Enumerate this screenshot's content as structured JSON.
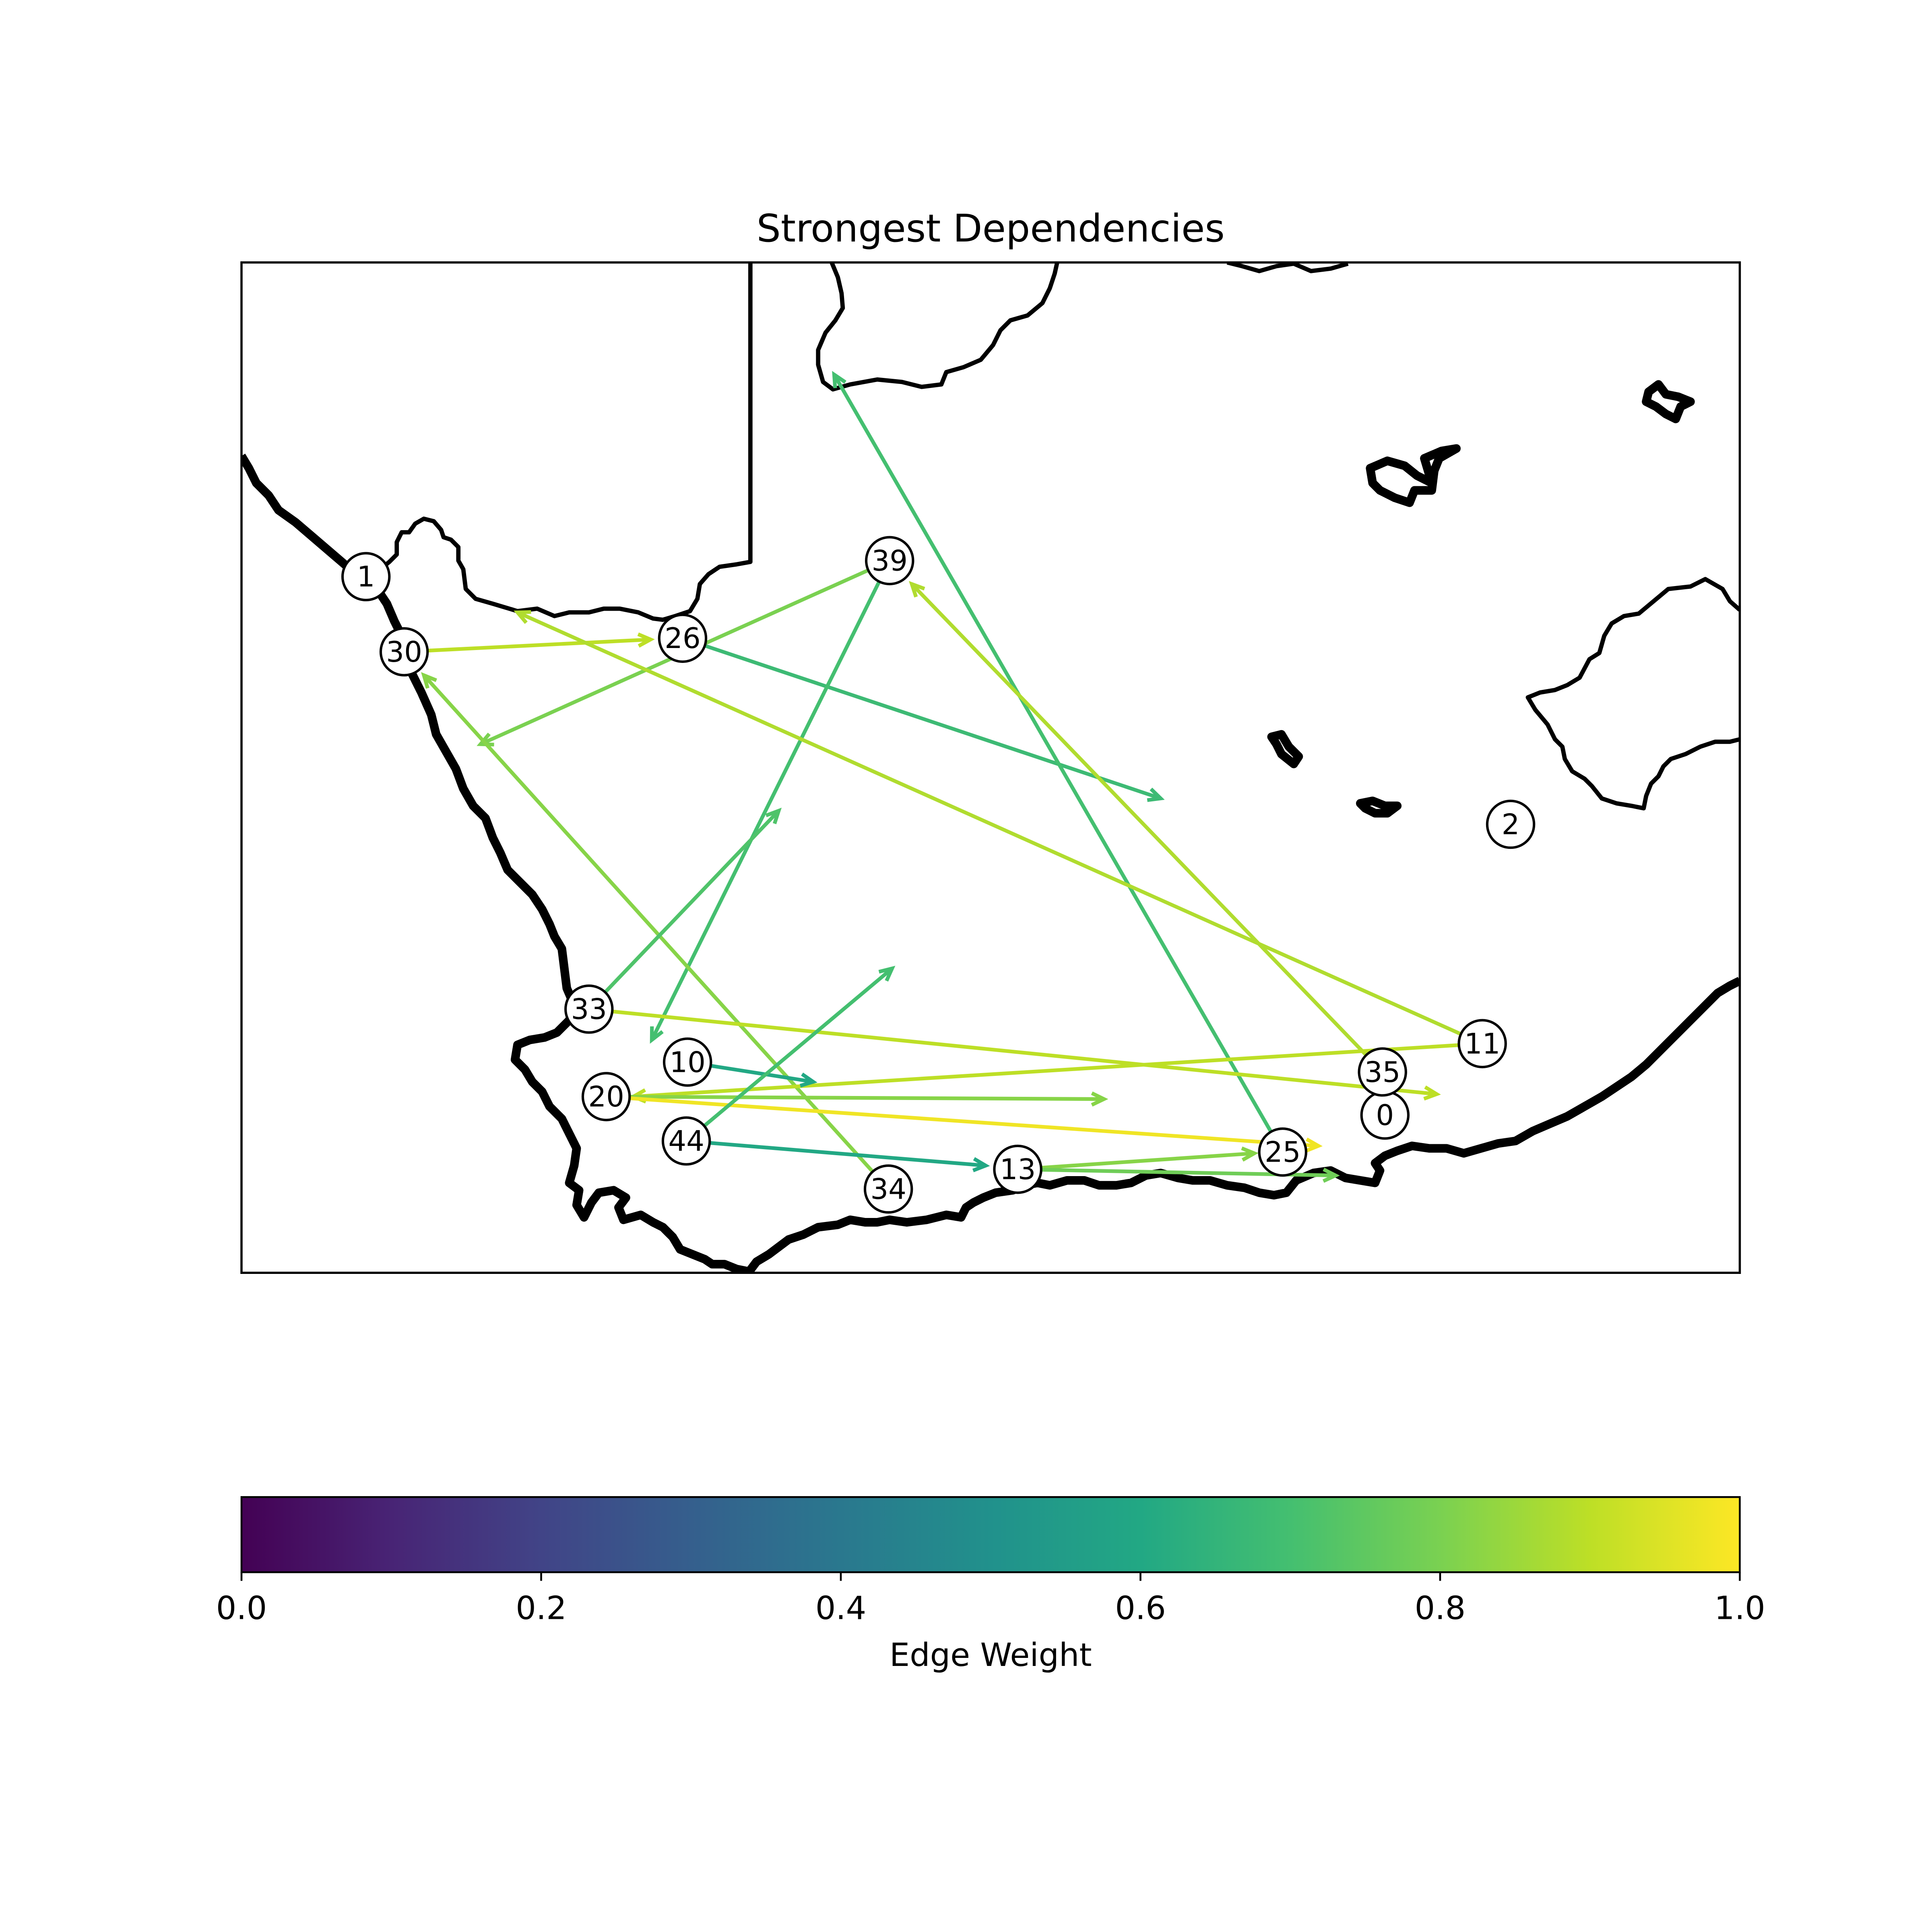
{
  "map": {
    "title": "Strongest Dependencies",
    "colormap": "viridis",
    "nodes": [
      {
        "id": "0"
      },
      {
        "id": "1"
      },
      {
        "id": "2"
      },
      {
        "id": "10"
      },
      {
        "id": "11"
      },
      {
        "id": "13"
      },
      {
        "id": "20"
      },
      {
        "id": "25"
      },
      {
        "id": "26"
      },
      {
        "id": "30"
      },
      {
        "id": "33"
      },
      {
        "id": "34"
      },
      {
        "id": "35"
      },
      {
        "id": "39"
      },
      {
        "id": "44"
      }
    ],
    "edges": [
      {
        "source": "30",
        "target": "26",
        "weight": 0.9
      },
      {
        "source": "26",
        "target": "off-map",
        "weight": 0.68
      },
      {
        "source": "39",
        "target": "off-map",
        "weight": 0.8
      },
      {
        "source": "39",
        "target": "off-map",
        "weight": 0.7
      },
      {
        "source": "25",
        "target": "off-map",
        "weight": 0.7
      },
      {
        "source": "11",
        "target": "off-map",
        "weight": 0.88
      },
      {
        "source": "35",
        "target": "off-map",
        "weight": 0.88
      },
      {
        "source": "34",
        "target": "30",
        "weight": 0.82
      },
      {
        "source": "33",
        "target": "off-map",
        "weight": 0.72
      },
      {
        "source": "33",
        "target": "off-map",
        "weight": 0.9
      },
      {
        "source": "11",
        "target": "20",
        "weight": 0.9
      },
      {
        "source": "20",
        "target": "off-map",
        "weight": 0.82
      },
      {
        "source": "20",
        "target": "off-map",
        "weight": 0.98
      },
      {
        "source": "10",
        "target": "off-map",
        "weight": 0.6
      },
      {
        "source": "44",
        "target": "off-map",
        "weight": 0.7
      },
      {
        "source": "44",
        "target": "13",
        "weight": 0.6
      },
      {
        "source": "13",
        "target": "25",
        "weight": 0.82
      },
      {
        "source": "13",
        "target": "off-map",
        "weight": 0.78
      }
    ]
  },
  "colorbar": {
    "label": "Edge Weight",
    "range": [
      0.0,
      1.0
    ],
    "ticks": [
      "0.0",
      "0.2",
      "0.4",
      "0.6",
      "0.8",
      "1.0"
    ]
  }
}
